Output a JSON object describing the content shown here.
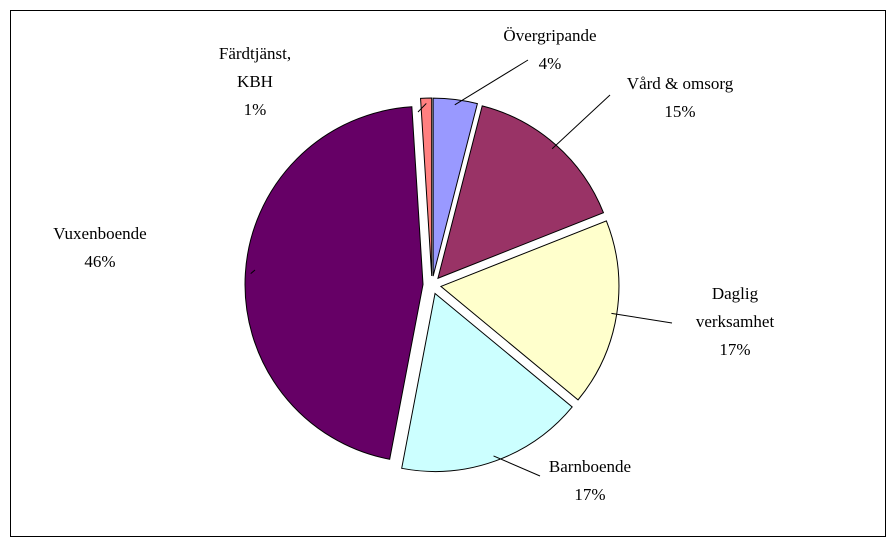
{
  "chart_data": {
    "type": "pie",
    "categories": [
      "Övergripande",
      "Vård & omsorg",
      "Daglig verksamhet",
      "Barnboende",
      "Vuxenboende",
      "Färdtjänst, KBH"
    ],
    "values": [
      4,
      15,
      17,
      17,
      46,
      1
    ],
    "value_labels": [
      "4%",
      "15%",
      "17%",
      "17%",
      "46%",
      "1%"
    ],
    "colors": [
      "#9999ff",
      "#993366",
      "#ffffcc",
      "#ccffff",
      "#660066",
      "#ff8080"
    ]
  }
}
